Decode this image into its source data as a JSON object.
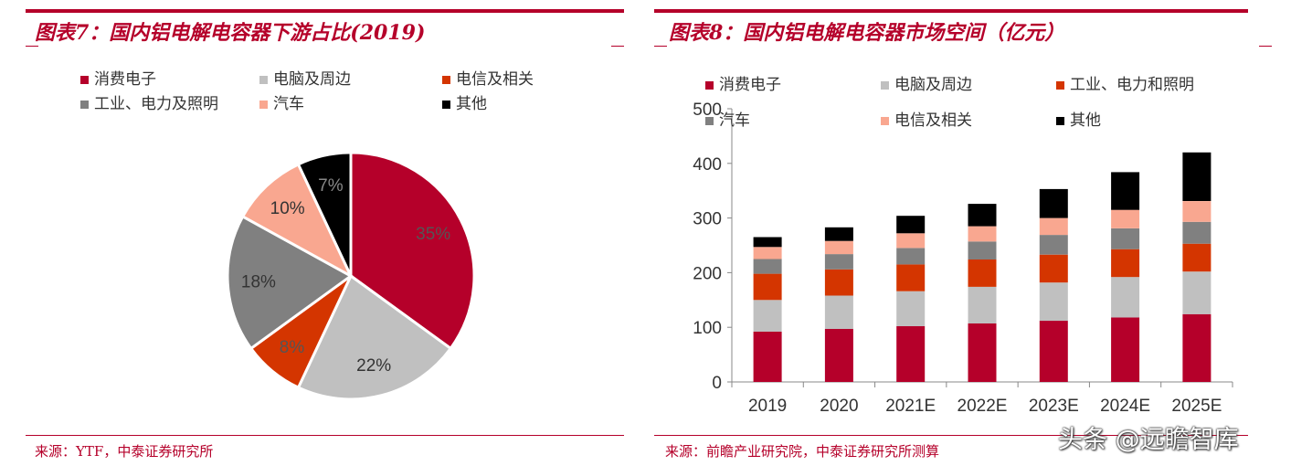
{
  "left": {
    "title": "图表7：国内铝电解电容器下游占比(2019)",
    "source": "来源：YTF，中泰证券研究所",
    "legend": [
      {
        "label": "消费电子",
        "color": "#b5002a"
      },
      {
        "label": "电脑及周边",
        "color": "#c0c0c0"
      },
      {
        "label": "电信及相关",
        "color": "#d43500"
      },
      {
        "label": "工业、电力及照明",
        "color": "#808080"
      },
      {
        "label": "汽车",
        "color": "#f9a790"
      },
      {
        "label": "其他",
        "color": "#000000"
      }
    ]
  },
  "right": {
    "title": "图表8：国内铝电解电容器市场空间（亿元）",
    "source": "来源：前瞻产业研究院，中泰证券研究所测算",
    "legend": [
      {
        "label": "消费电子",
        "color": "#b5002a"
      },
      {
        "label": "电脑及周边",
        "color": "#c0c0c0"
      },
      {
        "label": "工业、电力和照明",
        "color": "#d43500"
      },
      {
        "label": "汽车",
        "color": "#808080"
      },
      {
        "label": "电信及相关",
        "color": "#f9a790"
      },
      {
        "label": "其他",
        "color": "#000000"
      }
    ]
  },
  "watermark": "头条 @远瞻智库",
  "chart_data": [
    {
      "type": "pie",
      "title": "图表7：国内铝电解电容器下游占比(2019)",
      "labels": [
        "消费电子",
        "电脑及周边",
        "电信及相关",
        "工业、电力及照明",
        "汽车",
        "其他"
      ],
      "values": [
        35,
        22,
        8,
        18,
        10,
        7
      ],
      "value_labels": [
        "35%",
        "22%",
        "8%",
        "18%",
        "10%",
        "7%"
      ],
      "colors": [
        "#b5002a",
        "#c0c0c0",
        "#d43500",
        "#808080",
        "#f9a790",
        "#000000"
      ],
      "label_colors": [
        "#555555",
        "#333333",
        "#555555",
        "#333333",
        "#333333",
        "#888888"
      ],
      "legend_position": "top"
    },
    {
      "type": "bar",
      "stacked": true,
      "title": "图表8：国内铝电解电容器市场空间（亿元）",
      "categories": [
        "2019",
        "2020",
        "2021E",
        "2022E",
        "2023E",
        "2024E",
        "2025E"
      ],
      "series": [
        {
          "name": "消费电子",
          "color": "#b5002a",
          "values": [
            92,
            97,
            102,
            107,
            112,
            118,
            124
          ]
        },
        {
          "name": "电脑及周边",
          "color": "#c0c0c0",
          "values": [
            58,
            61,
            64,
            67,
            70,
            74,
            78
          ]
        },
        {
          "name": "工业、电力和照明",
          "color": "#d43500",
          "values": [
            48,
            48,
            49,
            50,
            51,
            51,
            51
          ]
        },
        {
          "name": "汽车",
          "color": "#808080",
          "values": [
            27,
            28,
            30,
            33,
            36,
            38,
            40
          ]
        },
        {
          "name": "电信及相关",
          "color": "#f9a790",
          "values": [
            22,
            24,
            27,
            28,
            31,
            34,
            38
          ]
        },
        {
          "name": "其他",
          "color": "#000000",
          "values": [
            18,
            25,
            32,
            41,
            53,
            69,
            89
          ]
        }
      ],
      "ylim": [
        0,
        500
      ],
      "yticks": [
        0,
        100,
        200,
        300,
        400,
        500
      ],
      "grid": false,
      "legend_position": "top"
    }
  ]
}
